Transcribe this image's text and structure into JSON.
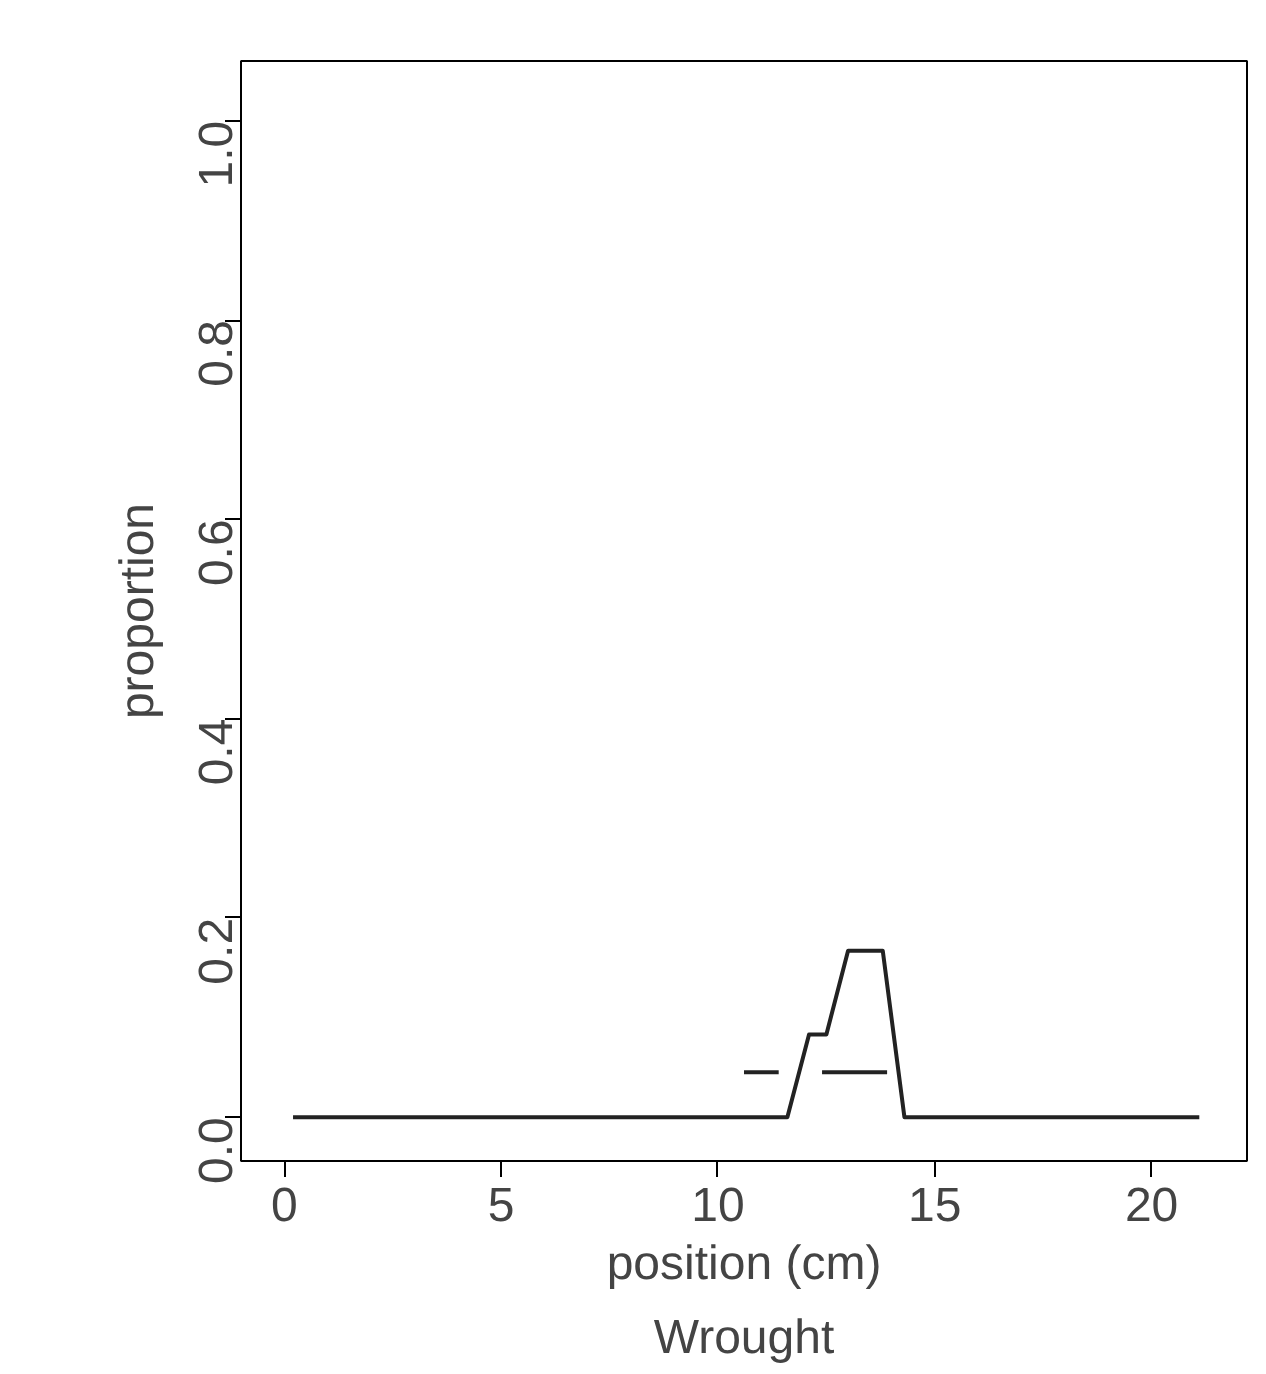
{
  "chart_data": {
    "type": "line",
    "xlabel": "position (cm)",
    "ylabel": "proportion",
    "annotations": [
      "Wrought"
    ],
    "xlim": [
      -1,
      22.2
    ],
    "ylim": [
      -0.044,
      1.06
    ],
    "xticks": [
      0,
      5,
      10,
      15,
      20
    ],
    "yticks": [
      {
        "value": 0,
        "label": "0.0"
      },
      {
        "value": 0.2,
        "label": "0.2"
      },
      {
        "value": 0.4,
        "label": "0.4"
      },
      {
        "value": 0.6,
        "label": "0.6"
      },
      {
        "value": 0.8,
        "label": "0.8"
      },
      {
        "value": 1,
        "label": "1.0"
      }
    ],
    "grid": false,
    "marker": "none",
    "line_style": "solid",
    "series": [
      {
        "color": "#222222",
        "x": [
          0.2,
          11.6,
          12.1,
          12.5,
          13.0,
          13.8,
          14.3,
          21.1
        ],
        "values": [
          0,
          0,
          0.083,
          0.083,
          0.167,
          0.167,
          0,
          0
        ]
      },
      {
        "color": "#222222",
        "x": [
          10.6,
          11.4,
          11.5,
          12.4,
          13.9
        ],
        "values": [
          0.045,
          0.045,
          null,
          0.045,
          0.045
        ]
      }
    ]
  }
}
